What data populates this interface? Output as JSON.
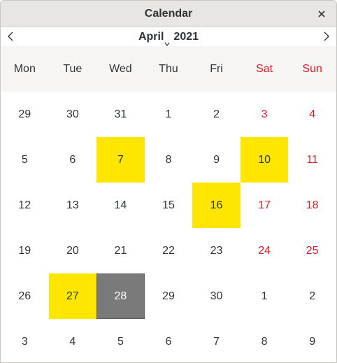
{
  "window": {
    "title": "Calendar"
  },
  "nav": {
    "month": "April",
    "year": "2021"
  },
  "weekdays": [
    "Mon",
    "Tue",
    "Wed",
    "Thu",
    "Fri",
    "Sat",
    "Sun"
  ],
  "colors": {
    "weekend": "#e01b24",
    "marked": "#ffe600",
    "today": "#7a7a7a"
  },
  "weeks": [
    [
      "29",
      "30",
      "31",
      "1",
      "2",
      "3",
      "4"
    ],
    [
      "5",
      "6",
      "7",
      "8",
      "9",
      "10",
      "11"
    ],
    [
      "12",
      "13",
      "14",
      "15",
      "16",
      "17",
      "18"
    ],
    [
      "19",
      "20",
      "21",
      "22",
      "23",
      "24",
      "25"
    ],
    [
      "26",
      "27",
      "28",
      "29",
      "30",
      "1",
      "2"
    ],
    [
      "3",
      "4",
      "5",
      "6",
      "7",
      "8",
      "9"
    ]
  ],
  "marked_days": [
    "7",
    "10",
    "16",
    "27"
  ],
  "selected_day": "28"
}
